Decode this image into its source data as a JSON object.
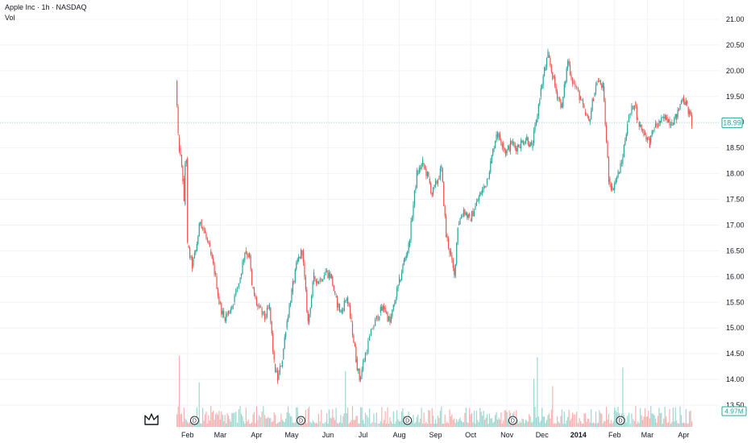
{
  "header": {
    "title": "Apple Inc · 1h · NASDAQ",
    "volume_label": "Vol"
  },
  "colors": {
    "up": "#26a69a",
    "down": "#ef5350",
    "price_badge": "#26a69a",
    "volume_badge": "#26a69a",
    "grid": "#f0f3fa"
  },
  "icons": {
    "logo": "crown-logo-icon",
    "dividend": "dividend-marker-icon"
  },
  "badges": {
    "last_price": "18.99",
    "last_volume": "4.97M"
  },
  "dividend_marker_label": "D",
  "dividend_months": [
    "Feb",
    "May",
    "Aug",
    "Nov",
    "Feb"
  ],
  "chart_data": {
    "type": "candlestick",
    "title": "Apple Inc · 1h · NASDAQ",
    "y_ticks": [
      "21.00",
      "20.50",
      "20.00",
      "19.50",
      "19.00",
      "18.50",
      "18.00",
      "17.50",
      "17.00",
      "16.50",
      "16.00",
      "15.50",
      "15.00",
      "14.50",
      "14.00",
      "13.50"
    ],
    "x_ticks": [
      "Feb",
      "Mar",
      "Apr",
      "May",
      "Jun",
      "Jul",
      "Aug",
      "Sep",
      "Oct",
      "Nov",
      "Dec",
      "2014",
      "Feb",
      "Mar",
      "Apr"
    ],
    "ylim": [
      13.5,
      21.0
    ],
    "price_path": [
      [
        "2013-01-22",
        19.8
      ],
      [
        "2013-01-23",
        19.3
      ],
      [
        "2013-01-24",
        18.7
      ],
      [
        "2013-01-25",
        18.5
      ],
      [
        "2013-01-28",
        17.9
      ],
      [
        "2013-01-29",
        17.4
      ],
      [
        "2013-01-30",
        18.2
      ],
      [
        "2013-01-31",
        18.3
      ],
      [
        "2013-02-01",
        16.6
      ],
      [
        "2013-02-05",
        16.2
      ],
      [
        "2013-02-08",
        16.5
      ],
      [
        "2013-02-12",
        17.1
      ],
      [
        "2013-02-15",
        16.9
      ],
      [
        "2013-02-20",
        16.5
      ],
      [
        "2013-02-25",
        16.0
      ],
      [
        "2013-02-28",
        15.5
      ],
      [
        "2013-03-04",
        15.2
      ],
      [
        "2013-03-08",
        15.3
      ],
      [
        "2013-03-12",
        15.5
      ],
      [
        "2013-03-18",
        16.0
      ],
      [
        "2013-03-22",
        16.5
      ],
      [
        "2013-03-26",
        16.4
      ],
      [
        "2013-03-28",
        15.8
      ],
      [
        "2013-04-02",
        15.4
      ],
      [
        "2013-04-08",
        15.2
      ],
      [
        "2013-04-12",
        15.4
      ],
      [
        "2013-04-16",
        14.3
      ],
      [
        "2013-04-19",
        14.0
      ],
      [
        "2013-04-23",
        14.4
      ],
      [
        "2013-04-26",
        15.0
      ],
      [
        "2013-05-01",
        15.7
      ],
      [
        "2013-05-06",
        16.3
      ],
      [
        "2013-05-10",
        16.5
      ],
      [
        "2013-05-15",
        15.1
      ],
      [
        "2013-05-20",
        16.0
      ],
      [
        "2013-05-24",
        15.9
      ],
      [
        "2013-05-30",
        16.1
      ],
      [
        "2013-06-04",
        16.0
      ],
      [
        "2013-06-07",
        15.6
      ],
      [
        "2013-06-12",
        15.3
      ],
      [
        "2013-06-17",
        15.6
      ],
      [
        "2013-06-21",
        15.1
      ],
      [
        "2013-06-25",
        14.4
      ],
      [
        "2013-06-28",
        14.0
      ],
      [
        "2013-07-03",
        14.5
      ],
      [
        "2013-07-09",
        15.0
      ],
      [
        "2013-07-15",
        15.3
      ],
      [
        "2013-07-19",
        15.4
      ],
      [
        "2013-07-24",
        15.1
      ],
      [
        "2013-07-29",
        15.6
      ],
      [
        "2013-08-01",
        15.9
      ],
      [
        "2013-08-05",
        16.3
      ],
      [
        "2013-08-09",
        16.6
      ],
      [
        "2013-08-13",
        17.4
      ],
      [
        "2013-08-16",
        18.0
      ],
      [
        "2013-08-21",
        18.2
      ],
      [
        "2013-08-26",
        17.9
      ],
      [
        "2013-08-29",
        17.6
      ],
      [
        "2013-09-03",
        17.9
      ],
      [
        "2013-09-06",
        18.1
      ],
      [
        "2013-09-10",
        16.8
      ],
      [
        "2013-09-13",
        16.5
      ],
      [
        "2013-09-17",
        16.0
      ],
      [
        "2013-09-20",
        17.0
      ],
      [
        "2013-09-25",
        17.3
      ],
      [
        "2013-09-30",
        17.1
      ],
      [
        "2013-10-04",
        17.3
      ],
      [
        "2013-10-09",
        17.6
      ],
      [
        "2013-10-14",
        17.8
      ],
      [
        "2013-10-18",
        18.2
      ],
      [
        "2013-10-23",
        18.8
      ],
      [
        "2013-10-28",
        18.6
      ],
      [
        "2013-10-31",
        18.4
      ],
      [
        "2013-11-05",
        18.6
      ],
      [
        "2013-11-08",
        18.5
      ],
      [
        "2013-11-13",
        18.6
      ],
      [
        "2013-11-18",
        18.7
      ],
      [
        "2013-11-22",
        18.5
      ],
      [
        "2013-11-26",
        19.0
      ],
      [
        "2013-11-29",
        19.5
      ],
      [
        "2013-12-03",
        20.0
      ],
      [
        "2013-12-06",
        20.3
      ],
      [
        "2013-12-10",
        19.9
      ],
      [
        "2013-12-13",
        19.6
      ],
      [
        "2013-12-18",
        19.3
      ],
      [
        "2013-12-23",
        20.2
      ],
      [
        "2013-12-27",
        19.8
      ],
      [
        "2014-01-02",
        19.5
      ],
      [
        "2014-01-06",
        19.2
      ],
      [
        "2014-01-10",
        19.0
      ],
      [
        "2014-01-14",
        19.5
      ],
      [
        "2014-01-17",
        19.8
      ],
      [
        "2014-01-22",
        19.7
      ],
      [
        "2014-01-27",
        17.9
      ],
      [
        "2014-01-30",
        17.7
      ],
      [
        "2014-02-04",
        18.0
      ],
      [
        "2014-02-07",
        18.2
      ],
      [
        "2014-02-12",
        19.0
      ],
      [
        "2014-02-18",
        19.4
      ],
      [
        "2014-02-21",
        19.0
      ],
      [
        "2014-02-26",
        18.8
      ],
      [
        "2014-03-03",
        18.6
      ],
      [
        "2014-03-07",
        18.9
      ],
      [
        "2014-03-12",
        19.0
      ],
      [
        "2014-03-17",
        19.1
      ],
      [
        "2014-03-21",
        19.0
      ],
      [
        "2014-03-26",
        19.1
      ],
      [
        "2014-03-31",
        19.5
      ],
      [
        "2014-04-04",
        19.3
      ],
      [
        "2014-04-08",
        18.99
      ]
    ],
    "volume_note": "Vol"
  }
}
